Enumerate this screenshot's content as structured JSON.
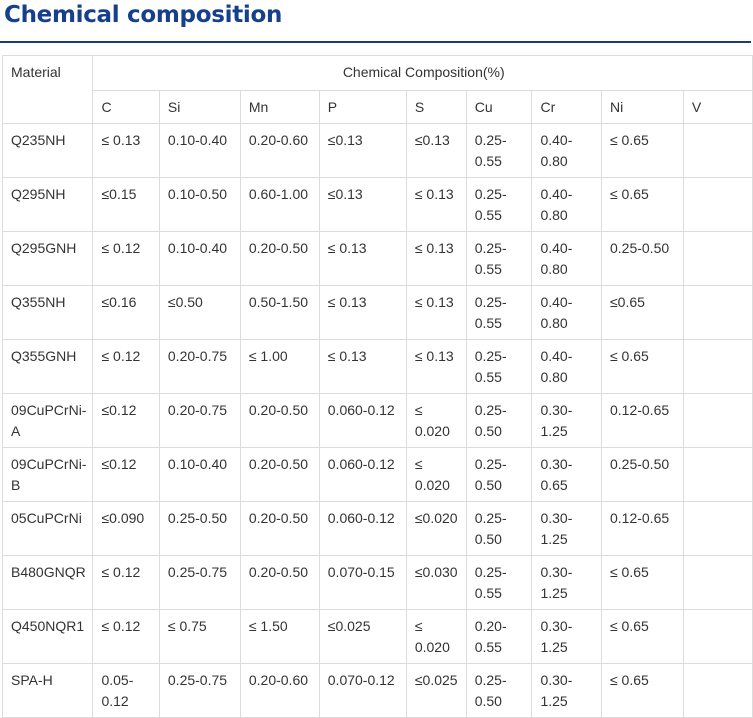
{
  "title": "Chemical composition",
  "table": {
    "material_header": "Material",
    "group_header": "Chemical Composition(%)",
    "columns": [
      "C",
      "Si",
      "Mn",
      "P",
      "S",
      "Cu",
      "Cr",
      "Ni",
      "V"
    ],
    "rows": [
      {
        "material": "Q235NH",
        "values": [
          "≤ 0.13",
          "0.10-0.40",
          "0.20-0.60",
          "≤0.13",
          "≤0.13",
          "0.25-0.55",
          "0.40-0.80",
          "≤ 0.65",
          ""
        ]
      },
      {
        "material": "Q295NH",
        "values": [
          "≤0.15",
          "0.10-0.50",
          "0.60-1.00",
          "≤0.13",
          "≤ 0.13",
          "0.25-0.55",
          "0.40-0.80",
          "≤ 0.65",
          ""
        ]
      },
      {
        "material": "Q295GNH",
        "values": [
          "≤ 0.12",
          "0.10-0.40",
          "0.20-0.50",
          "≤ 0.13",
          "≤ 0.13",
          "0.25-0.55",
          "0.40-0.80",
          "0.25-0.50",
          ""
        ]
      },
      {
        "material": "Q355NH",
        "values": [
          "≤0.16",
          "≤0.50",
          "0.50-1.50",
          "≤ 0.13",
          "≤ 0.13",
          "0.25-0.55",
          "0.40-0.80",
          "≤0.65",
          ""
        ]
      },
      {
        "material": "Q355GNH",
        "values": [
          "≤ 0.12",
          "0.20-0.75",
          "≤ 1.00",
          "≤ 0.13",
          "≤ 0.13",
          "0.25-0.55",
          "0.40-0.80",
          "≤ 0.65",
          ""
        ]
      },
      {
        "material": "09CuPCrNi-A",
        "values": [
          "≤0.12",
          "0.20-0.75",
          "0.20-0.50",
          "0.060-0.12",
          "≤ 0.020",
          "0.25-0.50",
          "0.30-1.25",
          "0.12-0.65",
          ""
        ]
      },
      {
        "material": "09CuPCrNi-B",
        "values": [
          "≤0.12",
          "0.10-0.40",
          "0.20-0.50",
          "0.060-0.12",
          "≤ 0.020",
          "0.25-0.50",
          "0.30-0.65",
          "0.25-0.50",
          ""
        ]
      },
      {
        "material": "05CuPCrNi",
        "values": [
          "≤0.090",
          "0.25-0.50",
          "0.20-0.50",
          "0.060-0.12",
          "≤0.020",
          "0.25-0.50",
          "0.30-1.25",
          "0.12-0.65",
          ""
        ]
      },
      {
        "material": "B480GNQR",
        "values": [
          "≤ 0.12",
          "0.25-0.75",
          "0.20-0.50",
          "0.070-0.15",
          "≤0.030",
          "0.25-0.55",
          "0.30-1.25",
          "≤ 0.65",
          ""
        ]
      },
      {
        "material": "Q450NQR1",
        "values": [
          "≤ 0.12",
          "≤ 0.75",
          "≤ 1.50",
          "≤0.025",
          "≤ 0.020",
          "0.20-0.55",
          "0.30-1.25",
          "≤ 0.65",
          ""
        ]
      },
      {
        "material": "SPA-H",
        "values": [
          "0.05-0.12",
          "0.25-0.75",
          "0.20-0.60",
          "0.070-0.12",
          "≤0.025",
          "0.25-0.50",
          "0.30-1.25",
          "≤ 0.65",
          ""
        ]
      }
    ]
  }
}
